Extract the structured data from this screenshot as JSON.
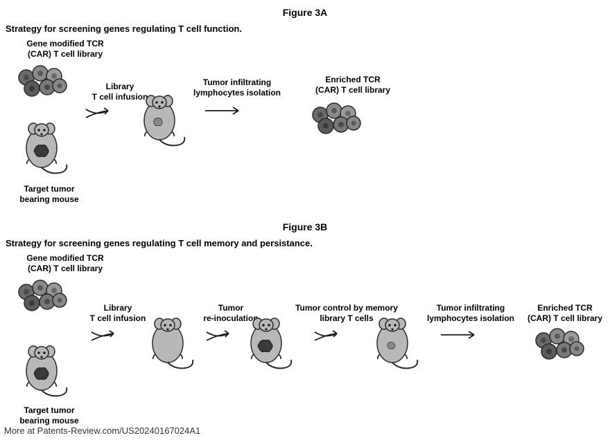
{
  "figureA": {
    "title": "Figure 3A",
    "caption": "Strategy for screening genes regulating T cell function.",
    "labels": {
      "libraryTop": "Gene modified TCR\n(CAR) T cell library",
      "mouseBottom": "Target tumor\nbearing mouse",
      "step1": "Library\nT cell infusion",
      "step2": "Tumor infiltrating\nlymphocytes isolation",
      "result": "Enriched TCR\n(CAR) T cell library"
    }
  },
  "figureB": {
    "title": "Figure 3B",
    "caption": "Strategy for screening genes regulating T cell memory and persistance.",
    "labels": {
      "libraryTop": "Gene modified TCR\n(CAR) T cell library",
      "mouseBottom": "Target tumor\nbearing mouse",
      "step1": "Library\nT cell infusion",
      "step2": "Tumor\nre-inoculation",
      "step3": "Tumor control by memory\nlibrary T cells",
      "step4": "Tumor infiltrating\nlymphocytes isolation",
      "result": "Enriched TCR\n(CAR) T cell library"
    }
  },
  "footer": "More at Patents-Review.com/US20240167024A1",
  "style": {
    "cellColors": [
      "#6b6b6b",
      "#8a8a8a",
      "#9a9a9a",
      "#5a5a5a",
      "#787878",
      "#888888",
      "#707070"
    ],
    "cellStroke": "#2a2a2a",
    "mouseBody": "#b8b8b8",
    "mouseStroke": "#2a2a2a",
    "tumorDark": "#3a3a3a",
    "tumorLight": "#8a8a8a",
    "arrowStroke": "#1a1a1a",
    "background": "#ffffff",
    "textColor": "#000000"
  }
}
